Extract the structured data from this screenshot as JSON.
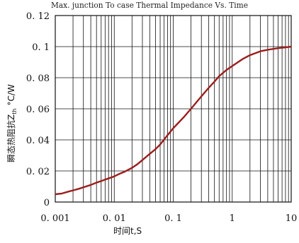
{
  "chart_data": {
    "type": "line",
    "title": "Max. junction To case Thermal Impedance Vs. Time",
    "xlabel": "时间t,S",
    "ylabel": "瞬态热阻抗Z",
    "ylabel_sub": "th",
    "ylabel_unit": "°C/W",
    "xscale": "log",
    "xlim": [
      0.001,
      10
    ],
    "ylim": [
      0,
      0.12
    ],
    "grid": true,
    "x_tick_labels": [
      "0. 001",
      "0. 01",
      "0. 1",
      "1",
      "10"
    ],
    "y_tick_labels": [
      "0",
      "0. 02",
      "0. 04",
      "0. 06",
      "0. 08",
      "0. 1",
      "0. 12"
    ],
    "series": [
      {
        "color": "#9b1d1d",
        "x": [
          0.001,
          0.0013,
          0.0016,
          0.002,
          0.0025,
          0.003,
          0.004,
          0.005,
          0.006,
          0.008,
          0.01,
          0.012,
          0.015,
          0.02,
          0.025,
          0.03,
          0.04,
          0.05,
          0.06,
          0.08,
          0.1,
          0.15,
          0.2,
          0.3,
          0.4,
          0.5,
          0.6,
          0.8,
          1,
          1.5,
          2,
          3,
          4,
          6,
          8,
          10
        ],
        "y": [
          0.005,
          0.0055,
          0.0065,
          0.0075,
          0.0085,
          0.0095,
          0.011,
          0.0125,
          0.0135,
          0.0152,
          0.0165,
          0.018,
          0.0195,
          0.022,
          0.0245,
          0.027,
          0.031,
          0.034,
          0.037,
          0.043,
          0.0475,
          0.0545,
          0.06,
          0.068,
          0.0735,
          0.0775,
          0.081,
          0.085,
          0.0875,
          0.092,
          0.0945,
          0.097,
          0.098,
          0.099,
          0.0995,
          0.1
        ]
      }
    ]
  }
}
